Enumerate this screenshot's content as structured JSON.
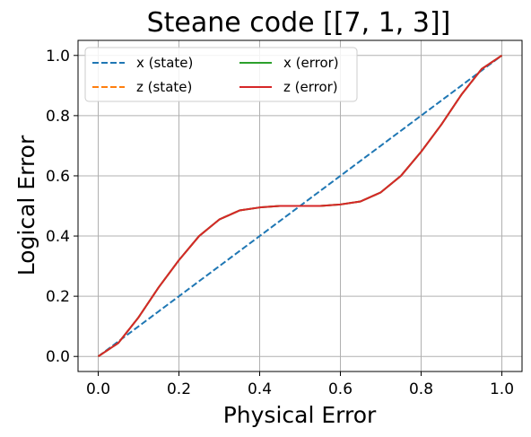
{
  "chart_data": {
    "type": "line",
    "title": "Steane code [[7, 1, 3]]",
    "xlabel": "Physical Error",
    "ylabel": "Logical Error",
    "xlim": [
      -0.05,
      1.05
    ],
    "ylim": [
      -0.05,
      1.05
    ],
    "xticks": [
      "0.0",
      "0.2",
      "0.4",
      "0.6",
      "0.8",
      "1.0"
    ],
    "yticks": [
      "0.0",
      "0.2",
      "0.4",
      "0.6",
      "0.8",
      "1.0"
    ],
    "grid": true,
    "legend_position": "top-left",
    "legend_columns": 2,
    "x": [
      0.0,
      0.05,
      0.1,
      0.15,
      0.2,
      0.25,
      0.3,
      0.35,
      0.4,
      0.45,
      0.5,
      0.55,
      0.6,
      0.65,
      0.7,
      0.75,
      0.8,
      0.85,
      0.9,
      0.95,
      1.0
    ],
    "series": [
      {
        "name": "x (state)",
        "style": "dashed",
        "color": "#1f77b4",
        "values": [
          0.0,
          0.05,
          0.1,
          0.15,
          0.2,
          0.25,
          0.3,
          0.35,
          0.4,
          0.45,
          0.5,
          0.55,
          0.6,
          0.65,
          0.7,
          0.75,
          0.8,
          0.85,
          0.9,
          0.95,
          1.0
        ]
      },
      {
        "name": "z (state)",
        "style": "dashed",
        "color": "#ff7f0e",
        "values": [
          0.0,
          0.045,
          0.13,
          0.23,
          0.32,
          0.4,
          0.455,
          0.485,
          0.495,
          0.5,
          0.5,
          0.5,
          0.505,
          0.515,
          0.545,
          0.6,
          0.68,
          0.77,
          0.87,
          0.955,
          1.0
        ]
      },
      {
        "name": "x (error)",
        "style": "solid",
        "color": "#2ca02c",
        "values": [
          0.0,
          0.045,
          0.13,
          0.23,
          0.32,
          0.4,
          0.455,
          0.485,
          0.495,
          0.5,
          0.5,
          0.5,
          0.505,
          0.515,
          0.545,
          0.6,
          0.68,
          0.77,
          0.87,
          0.955,
          1.0
        ]
      },
      {
        "name": "z (error)",
        "style": "solid",
        "color": "#d62728",
        "values": [
          0.0,
          0.045,
          0.13,
          0.23,
          0.32,
          0.4,
          0.455,
          0.485,
          0.495,
          0.5,
          0.5,
          0.5,
          0.505,
          0.515,
          0.545,
          0.6,
          0.68,
          0.77,
          0.87,
          0.955,
          1.0
        ]
      }
    ]
  }
}
